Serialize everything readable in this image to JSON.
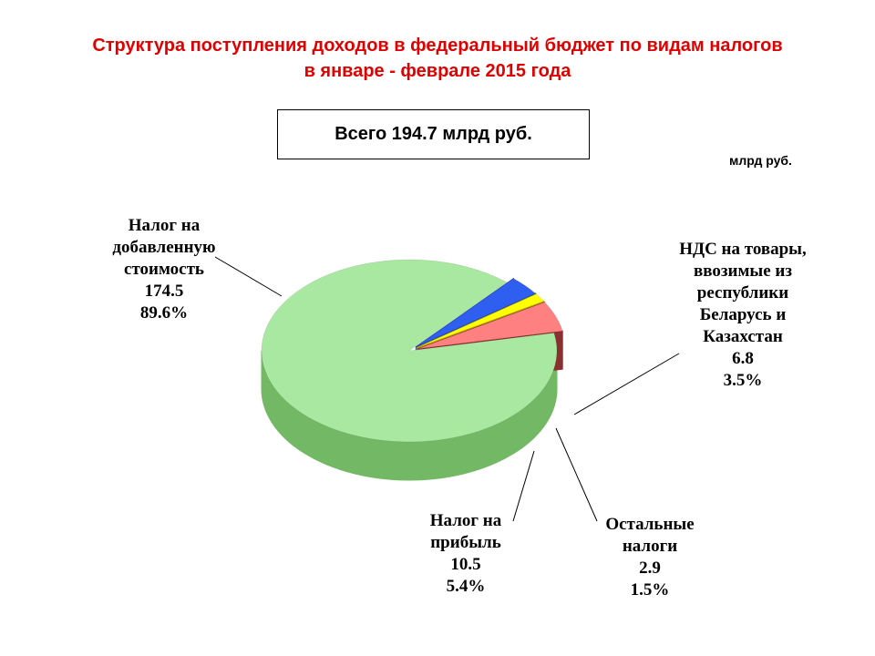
{
  "title_line1": "Структура поступления доходов в федеральный бюджет по видам налогов",
  "title_line2": "в январе - феврале 2015 года",
  "total_label": "Всего 194.7 млрд руб.",
  "unit_label": "млрд руб.",
  "chart_data": {
    "type": "pie",
    "title": "Структура поступления доходов в федеральный бюджет по видам налогов в январе - феврале 2015 года",
    "total": 194.7,
    "unit": "млрд руб.",
    "slices": [
      {
        "label_lines": [
          "Налог на",
          "добавленную",
          "стоимость"
        ],
        "value": 174.5,
        "value_text": "174.5",
        "percent": 89.6,
        "percent_text": "89.6%",
        "color": "#a8e8a0",
        "side_color": "#72b865"
      },
      {
        "label_lines": [
          "НДС на товары,",
          "ввозимые из",
          "республики",
          "Беларусь и",
          "Казахстан"
        ],
        "value": 6.8,
        "value_text": "6.8",
        "percent": 3.5,
        "percent_text": "3.5%",
        "color": "#2f5ff0",
        "side_color": "#1c3aa8"
      },
      {
        "label_lines": [
          "Остальные",
          "налоги"
        ],
        "value": 2.9,
        "value_text": "2.9",
        "percent": 1.5,
        "percent_text": "1.5%",
        "color": "#ffff00",
        "side_color": "#b8b000"
      },
      {
        "label_lines": [
          "Налог на",
          "прибыль"
        ],
        "value": 10.5,
        "value_text": "10.5",
        "percent": 5.4,
        "percent_text": "5.4%",
        "color": "#ff8080",
        "side_color": "#8a3030"
      }
    ]
  }
}
